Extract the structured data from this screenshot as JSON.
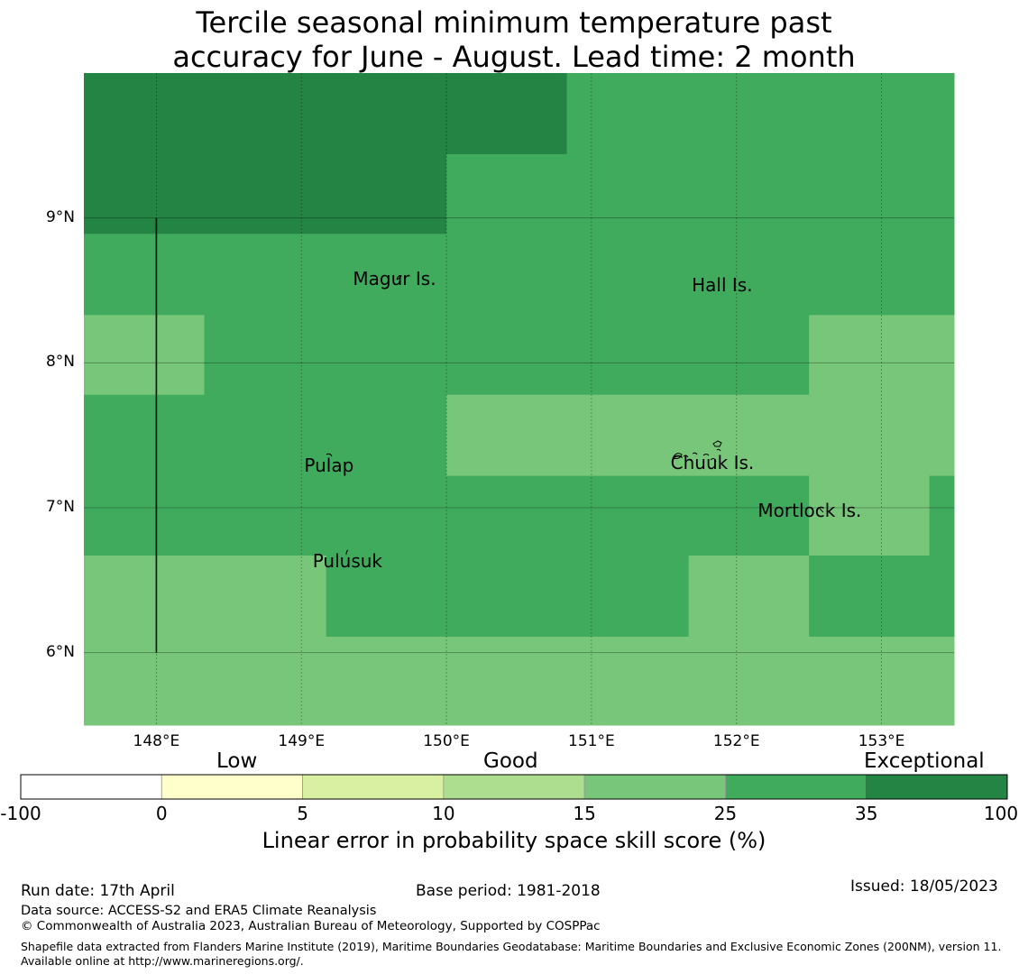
{
  "title_line1": "Tercile seasonal minimum temperature past",
  "title_line2": "accuracy for June - August. Lead time: 2 month",
  "map": {
    "lon_range": [
      147.5,
      153.5
    ],
    "lat_range": [
      5.5,
      10.0
    ],
    "lon_ticks": [
      148,
      149,
      150,
      151,
      152,
      153
    ],
    "lon_tick_labels": [
      "148°E",
      "149°E",
      "150°E",
      "151°E",
      "152°E",
      "153°E"
    ],
    "lat_ticks": [
      6,
      7,
      8,
      9
    ],
    "lat_tick_labels": [
      "6°N",
      "7°N",
      "8°N",
      "9°N"
    ],
    "grid": true,
    "colors": {
      "cat_25_35": "#41ab5d",
      "cat_15_25": "#78c679",
      "cat_35_100": "#238443"
    },
    "cells": [
      {
        "lon": [
          147.5,
          150.0
        ],
        "lat": [
          8.89,
          10.0
        ],
        "cat": "cat_35_100"
      },
      {
        "lon": [
          150.0,
          150.83
        ],
        "lat": [
          9.44,
          10.0
        ],
        "cat": "cat_35_100"
      },
      {
        "lon": [
          150.83,
          153.5
        ],
        "lat": [
          9.44,
          10.0
        ],
        "cat": "cat_25_35"
      },
      {
        "lon": [
          150.0,
          153.5
        ],
        "lat": [
          8.33,
          9.44
        ],
        "cat": "cat_25_35"
      },
      {
        "lon": [
          147.5,
          150.0
        ],
        "lat": [
          8.33,
          8.89
        ],
        "cat": "cat_25_35"
      },
      {
        "lon": [
          147.5,
          148.33
        ],
        "lat": [
          7.78,
          8.33
        ],
        "cat": "cat_15_25"
      },
      {
        "lon": [
          148.33,
          152.5
        ],
        "lat": [
          7.78,
          8.33
        ],
        "cat": "cat_25_35"
      },
      {
        "lon": [
          152.5,
          153.5
        ],
        "lat": [
          7.78,
          8.33
        ],
        "cat": "cat_15_25"
      },
      {
        "lon": [
          147.5,
          150.0
        ],
        "lat": [
          6.67,
          7.78
        ],
        "cat": "cat_25_35"
      },
      {
        "lon": [
          150.0,
          153.5
        ],
        "lat": [
          7.22,
          7.78
        ],
        "cat": "cat_15_25"
      },
      {
        "lon": [
          150.0,
          152.5
        ],
        "lat": [
          6.67,
          7.22
        ],
        "cat": "cat_25_35"
      },
      {
        "lon": [
          152.5,
          153.33
        ],
        "lat": [
          6.67,
          7.22
        ],
        "cat": "cat_15_25"
      },
      {
        "lon": [
          153.33,
          153.5
        ],
        "lat": [
          6.67,
          7.22
        ],
        "cat": "cat_25_35"
      },
      {
        "lon": [
          147.5,
          149.17
        ],
        "lat": [
          6.11,
          6.67
        ],
        "cat": "cat_15_25"
      },
      {
        "lon": [
          149.17,
          151.67
        ],
        "lat": [
          6.11,
          6.67
        ],
        "cat": "cat_25_35"
      },
      {
        "lon": [
          151.67,
          152.5
        ],
        "lat": [
          6.11,
          6.67
        ],
        "cat": "cat_15_25"
      },
      {
        "lon": [
          152.5,
          153.5
        ],
        "lat": [
          6.11,
          6.67
        ],
        "cat": "cat_25_35"
      },
      {
        "lon": [
          147.5,
          153.5
        ],
        "lat": [
          5.5,
          6.11
        ],
        "cat": "cat_15_25"
      }
    ],
    "boundary_line": {
      "lon": 148.0,
      "lat": [
        6.0,
        9.0
      ]
    },
    "places": [
      {
        "name": "Magur Is.",
        "lon": 149.68,
        "lat": 8.58
      },
      {
        "name": "Hall Is.",
        "lon": 151.98,
        "lat": 8.54
      },
      {
        "name": "Pulap",
        "lon": 149.2,
        "lat": 7.29
      },
      {
        "name": "Chuuk Is.",
        "lon": 151.87,
        "lat": 7.31
      },
      {
        "name": "Mortlock Is.",
        "lon": 152.58,
        "lat": 6.98
      },
      {
        "name": "Pulusuk",
        "lon": 149.33,
        "lat": 6.63
      }
    ]
  },
  "colorbar": {
    "categories": [
      "Low",
      "Good",
      "Exceptional"
    ],
    "bounds": [
      "-100",
      "0",
      "5",
      "10",
      "15",
      "25",
      "35",
      "100"
    ],
    "colors": [
      "#ffffff",
      "#ffffcc",
      "#d9f0a3",
      "#addd8e",
      "#78c679",
      "#41ab5d",
      "#238443"
    ],
    "label": "Linear error in probability space skill score (%)"
  },
  "footer": {
    "run_date": "Run date: 17th April",
    "base_period": "Base period: 1981-2018",
    "issued": "Issued: 18/05/2023",
    "data_source": "Data source: ACCESS-S2 and ERA5 Climate Reanalysis",
    "copyright": "© Commonwealth of Australia 2023, Australian Bureau of Meteorology, Supported by COSPPac",
    "shapefile": "Shapefile data extracted from Flanders Marine Institute (2019), Maritime Boundaries Geodatabase: Maritime Boundaries and Exclusive Economic Zones (200NM), version 11. Available online at http://www.marineregions.org/."
  }
}
